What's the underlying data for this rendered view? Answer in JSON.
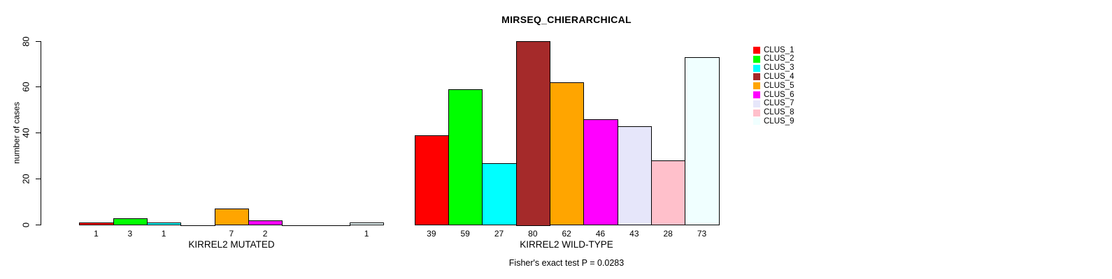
{
  "chart_data": {
    "type": "bar",
    "title": "MIRSEQ_CHIERARCHICAL",
    "ylabel": "number of cases",
    "ylim": [
      0,
      80
    ],
    "yticks": [
      0,
      20,
      40,
      60,
      80
    ],
    "grid": false,
    "legend_position": "right-outside",
    "clusters": [
      {
        "label": "CLUS_1",
        "color": "#FF0000"
      },
      {
        "label": "CLUS_2",
        "color": "#00FF00"
      },
      {
        "label": "CLUS_3",
        "color": "#00FFFF"
      },
      {
        "label": "CLUS_4",
        "color": "#A52A2A"
      },
      {
        "label": "CLUS_5",
        "color": "#FFA500"
      },
      {
        "label": "CLUS_6",
        "color": "#FF00FF"
      },
      {
        "label": "CLUS_7",
        "color": "#E6E6FA"
      },
      {
        "label": "CLUS_8",
        "color": "#FFC0CB"
      },
      {
        "label": "CLUS_9",
        "color": "#F0FFFF"
      }
    ],
    "groups": [
      {
        "label": "KIRREL2 MUTATED",
        "values": [
          1,
          3,
          1,
          0,
          7,
          2,
          0,
          0,
          1
        ]
      },
      {
        "label": "KIRREL2 WILD-TYPE",
        "values": [
          39,
          59,
          27,
          80,
          62,
          46,
          43,
          28,
          73
        ]
      }
    ],
    "annotation": "Fisher's exact test P = 0.0283"
  }
}
